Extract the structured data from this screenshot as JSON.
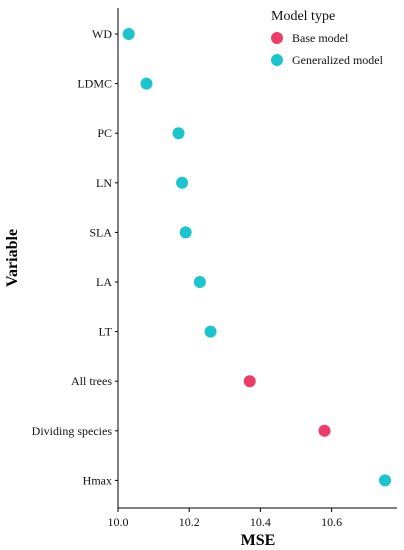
{
  "chart_data": {
    "type": "scatter",
    "xlabel": "MSE",
    "ylabel": "Variable",
    "xlim": [
      10.0,
      10.75
    ],
    "xticks": [
      10.0,
      10.2,
      10.4,
      10.6
    ],
    "xtick_labels": [
      "10.0",
      "10.2",
      "10.4",
      "10.6"
    ],
    "grid": false,
    "legend": {
      "title": "Model type",
      "placement": "top-right",
      "entries": [
        {
          "name": "Base model",
          "color": "#EE3B6A"
        },
        {
          "name": "Generalized model",
          "color": "#1CC4CC"
        }
      ]
    },
    "categories": [
      "WD",
      "LDMC",
      "PC",
      "LN",
      "SLA",
      "LA",
      "LT",
      "All trees",
      "Dividing  species",
      "Hmax"
    ],
    "points": [
      {
        "label": "WD",
        "x": 10.03,
        "model": "Generalized model"
      },
      {
        "label": "LDMC",
        "x": 10.08,
        "model": "Generalized model"
      },
      {
        "label": "PC",
        "x": 10.17,
        "model": "Generalized model"
      },
      {
        "label": "LN",
        "x": 10.18,
        "model": "Generalized model"
      },
      {
        "label": "SLA",
        "x": 10.19,
        "model": "Generalized model"
      },
      {
        "label": "LA",
        "x": 10.23,
        "model": "Generalized model"
      },
      {
        "label": "LT",
        "x": 10.26,
        "model": "Generalized model"
      },
      {
        "label": "All trees",
        "x": 10.37,
        "model": "Base model"
      },
      {
        "label": "Dividing  species",
        "x": 10.58,
        "model": "Base model"
      },
      {
        "label": "Hmax",
        "x": 10.75,
        "model": "Generalized model"
      }
    ]
  }
}
